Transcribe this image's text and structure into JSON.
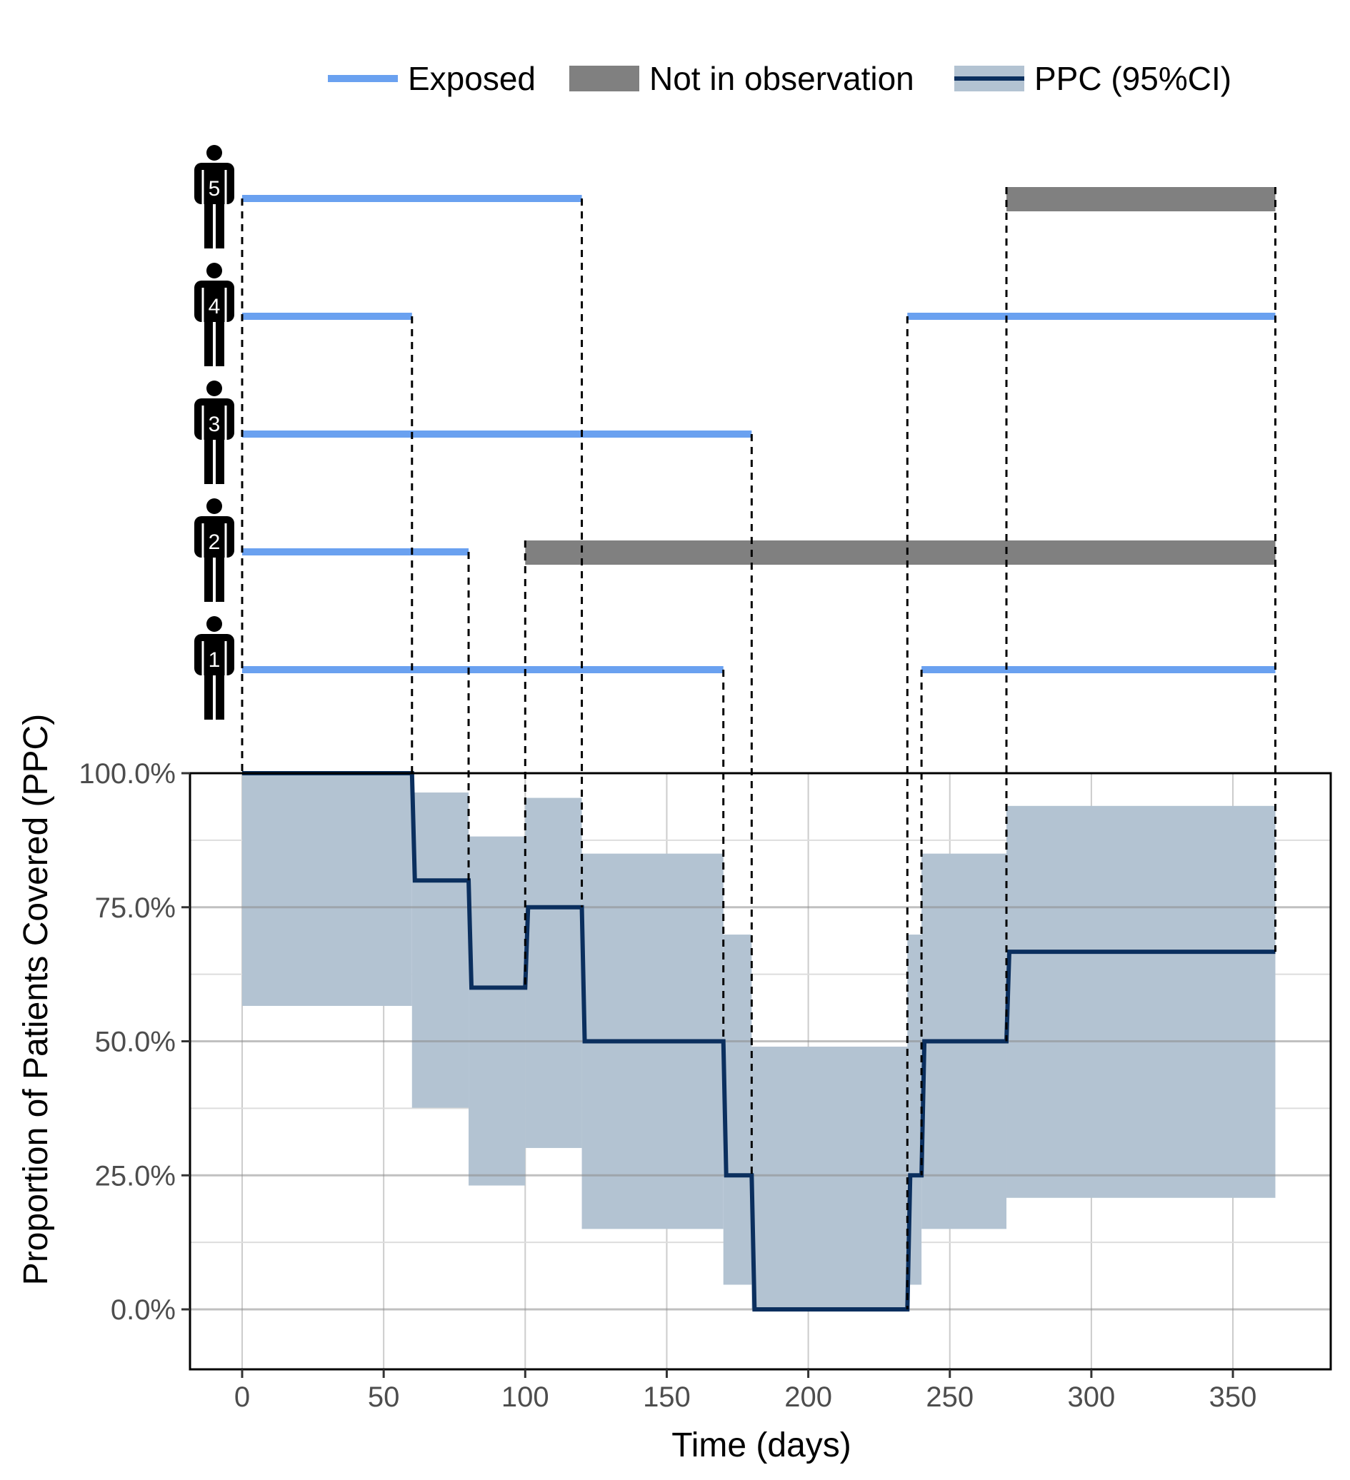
{
  "chart_data": {
    "type": "line",
    "legend": {
      "position": "top",
      "items": [
        {
          "label": "Exposed",
          "kind": "line",
          "color": "#6aa1f0"
        },
        {
          "label": "Not in observation",
          "kind": "bar",
          "color": "#808080"
        },
        {
          "label": "PPC (95%CI)",
          "kind": "line-band",
          "color": "#0b2f5e",
          "fill": "#b3c3d2"
        }
      ]
    },
    "xlabel": "Time (days)",
    "ylabel": "Proportion of Patients Covered (PPC)",
    "xlim": [
      -18,
      384
    ],
    "ylim": [
      -0.115,
      1.0
    ],
    "xticks": [
      {
        "value": 0,
        "label": "0"
      },
      {
        "value": 50,
        "label": "50"
      },
      {
        "value": 100,
        "label": "100"
      },
      {
        "value": 150,
        "label": "150"
      },
      {
        "value": 200,
        "label": "200"
      },
      {
        "value": 250,
        "label": "250"
      },
      {
        "value": 300,
        "label": "300"
      },
      {
        "value": 350,
        "label": "350"
      }
    ],
    "yticks": [
      {
        "value": 0.0,
        "label": "0.0%"
      },
      {
        "value": 0.25,
        "label": "25.0%"
      },
      {
        "value": 0.5,
        "label": "50.0%"
      },
      {
        "value": 0.75,
        "label": "75.0%"
      },
      {
        "value": 1.0,
        "label": "100.0%"
      }
    ],
    "grid": true,
    "patients": [
      {
        "label": "1",
        "exposed": [
          [
            0,
            170
          ],
          [
            240,
            365
          ]
        ],
        "not_in_observation": []
      },
      {
        "label": "2",
        "exposed": [
          [
            0,
            80
          ]
        ],
        "not_in_observation": [
          [
            100,
            365
          ]
        ]
      },
      {
        "label": "3",
        "exposed": [
          [
            0,
            180
          ]
        ],
        "not_in_observation": []
      },
      {
        "label": "4",
        "exposed": [
          [
            0,
            60
          ],
          [
            235,
            365
          ]
        ],
        "not_in_observation": []
      },
      {
        "label": "5",
        "exposed": [
          [
            0,
            120
          ]
        ],
        "not_in_observation": [
          [
            270,
            365
          ]
        ]
      }
    ],
    "event_days": [
      0,
      60,
      80,
      100,
      120,
      170,
      180,
      235,
      240,
      270,
      365
    ],
    "ppc": [
      {
        "x0": 0,
        "x1": 60,
        "ppc": 1.0,
        "lower": 0.566,
        "upper": 1.0
      },
      {
        "x0": 60,
        "x1": 80,
        "ppc": 0.8,
        "lower": 0.376,
        "upper": 0.964
      },
      {
        "x0": 80,
        "x1": 100,
        "ppc": 0.6,
        "lower": 0.231,
        "upper": 0.882
      },
      {
        "x0": 100,
        "x1": 120,
        "ppc": 0.75,
        "lower": 0.301,
        "upper": 0.954
      },
      {
        "x0": 120,
        "x1": 170,
        "ppc": 0.5,
        "lower": 0.15,
        "upper": 0.85
      },
      {
        "x0": 170,
        "x1": 180,
        "ppc": 0.25,
        "lower": 0.046,
        "upper": 0.699
      },
      {
        "x0": 180,
        "x1": 235,
        "ppc": 0.0,
        "lower": 0.0,
        "upper": 0.49
      },
      {
        "x0": 235,
        "x1": 240,
        "ppc": 0.25,
        "lower": 0.046,
        "upper": 0.699
      },
      {
        "x0": 240,
        "x1": 270,
        "ppc": 0.5,
        "lower": 0.15,
        "upper": 0.85
      },
      {
        "x0": 270,
        "x1": 365,
        "ppc": 0.667,
        "lower": 0.208,
        "upper": 0.939
      }
    ]
  }
}
